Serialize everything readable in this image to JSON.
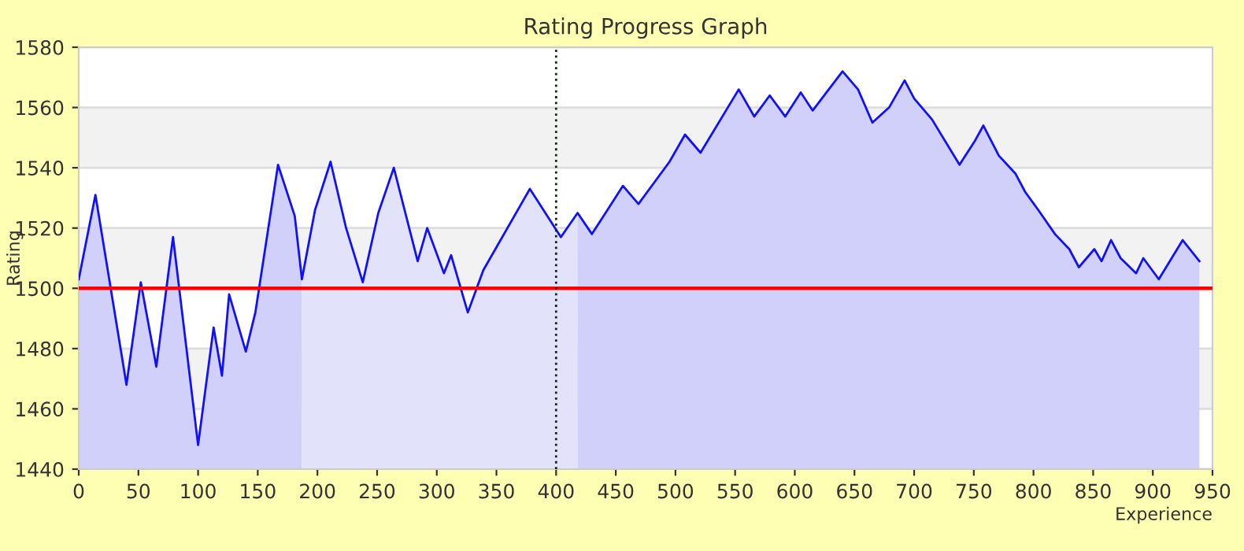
{
  "chart_data": {
    "type": "area",
    "title": "Rating Progress Graph",
    "xlabel": "Experience",
    "ylabel": "Rating",
    "xlim": [
      0,
      950
    ],
    "ylim": [
      1440,
      1580
    ],
    "xticks": [
      0,
      50,
      100,
      150,
      200,
      250,
      300,
      350,
      400,
      450,
      500,
      550,
      600,
      650,
      700,
      750,
      800,
      850,
      900,
      950
    ],
    "yticks": [
      1440,
      1460,
      1480,
      1500,
      1520,
      1540,
      1560,
      1580
    ],
    "grid": "y",
    "series": [
      {
        "type": "line",
        "color": "#1010ff",
        "x": [
          0,
          14,
          40,
          52,
          65,
          79,
          100,
          113,
          120,
          126,
          140,
          148,
          167,
          181,
          187,
          198,
          211,
          224,
          238,
          251,
          264,
          284,
          292,
          306,
          312,
          326,
          339,
          378,
          404,
          418,
          430,
          456,
          469,
          495,
          508,
          521,
          553,
          566,
          579,
          592,
          605,
          615,
          640,
          653,
          665,
          679,
          692,
          700,
          715,
          738,
          751,
          758,
          771,
          785,
          793,
          804,
          818,
          830,
          838,
          851,
          857,
          865,
          873,
          886,
          892,
          905,
          925,
          939
        ],
        "values": [
          1503,
          1531,
          1468,
          1502,
          1474,
          1517,
          1448,
          1487,
          1471,
          1498,
          1479,
          1492,
          1541,
          1524,
          1503,
          1526,
          1542,
          1520,
          1502,
          1525,
          1540,
          1509,
          1520,
          1505,
          1511,
          1492,
          1506,
          1533,
          1517,
          1525,
          1518,
          1534,
          1528,
          1542,
          1551,
          1545,
          1566,
          1557,
          1564,
          1557,
          1565,
          1559,
          1572,
          1566,
          1555,
          1560,
          1569,
          1563,
          1556,
          1541,
          1549,
          1554,
          1544,
          1538,
          1532,
          1526,
          1518,
          1513,
          1507,
          1513,
          1509,
          1516,
          1510,
          1505,
          1510,
          1503,
          1516,
          1509
        ]
      },
      {
        "color": "#d0d0fa",
        "x": [
          0,
          14,
          40,
          52,
          65,
          79,
          100,
          113,
          120,
          126,
          140,
          148,
          167,
          181,
          187
        ],
        "values": [
          1503,
          1531,
          1468,
          1502,
          1474,
          1517,
          1448,
          1487,
          1471,
          1498,
          1479,
          1492,
          1541,
          1524,
          1503
        ]
      },
      {
        "color": "#e2e2fb",
        "x": [
          187,
          198,
          211,
          224,
          238,
          251,
          264,
          284,
          292,
          306,
          312,
          326,
          339,
          378,
          404,
          418
        ],
        "values": [
          1503,
          1526,
          1542,
          1520,
          1502,
          1525,
          1540,
          1509,
          1520,
          1505,
          1511,
          1492,
          1506,
          1533,
          1517,
          1525
        ]
      },
      {
        "color": "#d0d0fa",
        "x": [
          418,
          430,
          456,
          469,
          495,
          508,
          521,
          553,
          566,
          579,
          592,
          605,
          615,
          640,
          653,
          665,
          679,
          692,
          700,
          715,
          738,
          751,
          758,
          771,
          785,
          793,
          804,
          818,
          830,
          838,
          851,
          857,
          865,
          873,
          886,
          892,
          905,
          925,
          939
        ],
        "values": [
          1525,
          1518,
          1534,
          1528,
          1542,
          1551,
          1545,
          1566,
          1557,
          1564,
          1557,
          1565,
          1559,
          1572,
          1566,
          1555,
          1560,
          1569,
          1563,
          1556,
          1541,
          1549,
          1554,
          1544,
          1538,
          1532,
          1526,
          1518,
          1513,
          1507,
          1513,
          1509,
          1516,
          1510,
          1505,
          1510,
          1503,
          1516,
          1509
        ]
      }
    ],
    "ref_lines": [
      {
        "axis": "y",
        "value": 1500,
        "label": null,
        "color": "#ff0000",
        "line_style": "solid"
      },
      {
        "axis": "x",
        "value": 400,
        "label": null,
        "color": "#003300",
        "line_style": "dotted"
      }
    ],
    "bands": [
      {
        "axis": "y",
        "from": 1540,
        "to": 1560,
        "label": null,
        "color": "#f2f2f2"
      },
      {
        "axis": "y",
        "from": 1500,
        "to": 1520,
        "label": null,
        "color": "#f2f2f2"
      },
      {
        "axis": "y",
        "from": 1460,
        "to": 1480,
        "label": null,
        "color": "#f2f2f2"
      }
    ]
  }
}
